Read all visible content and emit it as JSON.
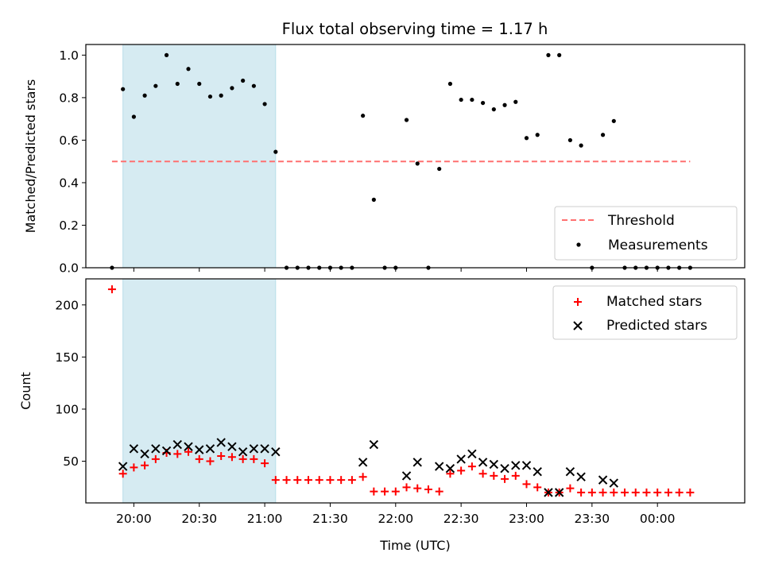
{
  "title": "Flux total observing time = 1.17 h",
  "colors": {
    "measurement": "#000000",
    "threshold": "#ff7070",
    "matched": "#ff0000",
    "predicted": "#000000",
    "highlight": "#add8e6"
  },
  "chart_data": [
    {
      "type": "scatter",
      "panel": "top",
      "ylabel": "Matched/Predicted stars",
      "xlabel": "",
      "xlim": [
        "19:38",
        "00:40"
      ],
      "ylim": [
        0,
        1.05
      ],
      "yticks": [
        0.0,
        0.2,
        0.4,
        0.6,
        0.8,
        1.0
      ],
      "ytick_labels": [
        "0.0",
        "0.2",
        "0.4",
        "0.6",
        "0.8",
        "1.0"
      ],
      "highlight_span": [
        "19:55",
        "21:05"
      ],
      "threshold": {
        "name": "Threshold",
        "value": 0.5,
        "x": [
          "19:50",
          "00:15"
        ]
      },
      "legend_position": "bottom-right",
      "legend": [
        "Threshold",
        "Measurements"
      ],
      "series": [
        {
          "name": "Measurements",
          "points": [
            [
              "19:50",
              0.0
            ],
            [
              "19:55",
              0.84
            ],
            [
              "20:00",
              0.71
            ],
            [
              "20:05",
              0.81
            ],
            [
              "20:10",
              0.855
            ],
            [
              "20:15",
              1.0
            ],
            [
              "20:20",
              0.865
            ],
            [
              "20:25",
              0.935
            ],
            [
              "20:30",
              0.865
            ],
            [
              "20:35",
              0.805
            ],
            [
              "20:40",
              0.81
            ],
            [
              "20:45",
              0.845
            ],
            [
              "20:50",
              0.88
            ],
            [
              "20:55",
              0.855
            ],
            [
              "21:00",
              0.77
            ],
            [
              "21:05",
              0.545
            ],
            [
              "21:10",
              0.0
            ],
            [
              "21:15",
              0.0
            ],
            [
              "21:20",
              0.0
            ],
            [
              "21:25",
              0.0
            ],
            [
              "21:30",
              0.0
            ],
            [
              "21:35",
              0.0
            ],
            [
              "21:40",
              0.0
            ],
            [
              "21:45",
              0.715
            ],
            [
              "21:50",
              0.32
            ],
            [
              "21:55",
              0.0
            ],
            [
              "22:00",
              0.0
            ],
            [
              "22:05",
              0.695
            ],
            [
              "22:10",
              0.49
            ],
            [
              "22:15",
              0.0
            ],
            [
              "22:20",
              0.465
            ],
            [
              "22:25",
              0.865
            ],
            [
              "22:30",
              0.79
            ],
            [
              "22:35",
              0.79
            ],
            [
              "22:40",
              0.775
            ],
            [
              "22:45",
              0.745
            ],
            [
              "22:50",
              0.765
            ],
            [
              "22:55",
              0.78
            ],
            [
              "23:00",
              0.61
            ],
            [
              "23:05",
              0.625
            ],
            [
              "23:10",
              1.0
            ],
            [
              "23:15",
              1.0
            ],
            [
              "23:20",
              0.6
            ],
            [
              "23:25",
              0.575
            ],
            [
              "23:30",
              0.0
            ],
            [
              "23:35",
              0.625
            ],
            [
              "23:40",
              0.69
            ],
            [
              "23:45",
              0.0
            ],
            [
              "23:50",
              0.0
            ],
            [
              "23:55",
              0.0
            ],
            [
              "00:00",
              0.0
            ],
            [
              "00:05",
              0.0
            ],
            [
              "00:10",
              0.0
            ],
            [
              "00:15",
              0.0
            ]
          ]
        }
      ]
    },
    {
      "type": "scatter",
      "panel": "bottom",
      "ylabel": "Count",
      "xlabel": "Time (UTC)",
      "xlim": [
        "19:38",
        "00:40"
      ],
      "ylim": [
        10,
        225
      ],
      "yticks": [
        50,
        100,
        150,
        200
      ],
      "ytick_labels": [
        "50",
        "100",
        "150",
        "200"
      ],
      "xticks": [
        "20:00",
        "20:30",
        "21:00",
        "21:30",
        "22:00",
        "22:30",
        "23:00",
        "23:30",
        "00:00"
      ],
      "xtick_labels": [
        "20:00",
        "20:30",
        "21:00",
        "21:30",
        "22:00",
        "22:30",
        "23:00",
        "23:30",
        "00:00"
      ],
      "highlight_span": [
        "19:55",
        "21:05"
      ],
      "legend_position": "top-right",
      "legend": [
        "Matched stars",
        "Predicted stars"
      ],
      "series": [
        {
          "name": "Matched stars",
          "marker": "+",
          "points": [
            [
              "19:50",
              215
            ],
            [
              "19:55",
              38
            ],
            [
              "20:00",
              44
            ],
            [
              "20:05",
              46
            ],
            [
              "20:10",
              52
            ],
            [
              "20:15",
              58
            ],
            [
              "20:20",
              57
            ],
            [
              "20:25",
              59
            ],
            [
              "20:30",
              52
            ],
            [
              "20:35",
              50
            ],
            [
              "20:40",
              55
            ],
            [
              "20:45",
              54
            ],
            [
              "20:50",
              52
            ],
            [
              "20:55",
              52
            ],
            [
              "21:00",
              48
            ],
            [
              "21:05",
              32
            ],
            [
              "21:10",
              32
            ],
            [
              "21:15",
              32
            ],
            [
              "21:20",
              32
            ],
            [
              "21:25",
              32
            ],
            [
              "21:30",
              32
            ],
            [
              "21:35",
              32
            ],
            [
              "21:40",
              32
            ],
            [
              "21:45",
              35
            ],
            [
              "21:50",
              21
            ],
            [
              "21:55",
              21
            ],
            [
              "22:00",
              21
            ],
            [
              "22:05",
              25
            ],
            [
              "22:10",
              24
            ],
            [
              "22:15",
              23
            ],
            [
              "22:20",
              21
            ],
            [
              "22:25",
              38
            ],
            [
              "22:30",
              41
            ],
            [
              "22:35",
              45
            ],
            [
              "22:40",
              38
            ],
            [
              "22:45",
              36
            ],
            [
              "22:50",
              33
            ],
            [
              "22:55",
              36
            ],
            [
              "23:00",
              28
            ],
            [
              "23:05",
              25
            ],
            [
              "23:10",
              20
            ],
            [
              "23:15",
              20
            ],
            [
              "23:20",
              24
            ],
            [
              "23:25",
              20
            ],
            [
              "23:30",
              20
            ],
            [
              "23:35",
              20
            ],
            [
              "23:40",
              20
            ],
            [
              "23:45",
              20
            ],
            [
              "23:50",
              20
            ],
            [
              "23:55",
              20
            ],
            [
              "00:00",
              20
            ],
            [
              "00:05",
              20
            ],
            [
              "00:10",
              20
            ],
            [
              "00:15",
              20
            ]
          ]
        },
        {
          "name": "Predicted stars",
          "marker": "x",
          "points": [
            [
              "19:55",
              45
            ],
            [
              "20:00",
              62
            ],
            [
              "20:05",
              57
            ],
            [
              "20:10",
              62
            ],
            [
              "20:15",
              60
            ],
            [
              "20:20",
              66
            ],
            [
              "20:25",
              64
            ],
            [
              "20:30",
              61
            ],
            [
              "20:35",
              62
            ],
            [
              "20:40",
              68
            ],
            [
              "20:45",
              64
            ],
            [
              "20:50",
              59
            ],
            [
              "20:55",
              62
            ],
            [
              "21:00",
              62
            ],
            [
              "21:05",
              59
            ],
            [
              "21:45",
              49
            ],
            [
              "21:50",
              66
            ],
            [
              "22:05",
              36
            ],
            [
              "22:10",
              49
            ],
            [
              "22:20",
              45
            ],
            [
              "22:25",
              43
            ],
            [
              "22:30",
              52
            ],
            [
              "22:35",
              57
            ],
            [
              "22:40",
              49
            ],
            [
              "22:45",
              47
            ],
            [
              "22:50",
              43
            ],
            [
              "22:55",
              46
            ],
            [
              "23:00",
              46
            ],
            [
              "23:05",
              40
            ],
            [
              "23:10",
              20
            ],
            [
              "23:15",
              20
            ],
            [
              "23:20",
              40
            ],
            [
              "23:25",
              35
            ],
            [
              "23:35",
              32
            ],
            [
              "23:40",
              29
            ]
          ]
        }
      ]
    }
  ]
}
